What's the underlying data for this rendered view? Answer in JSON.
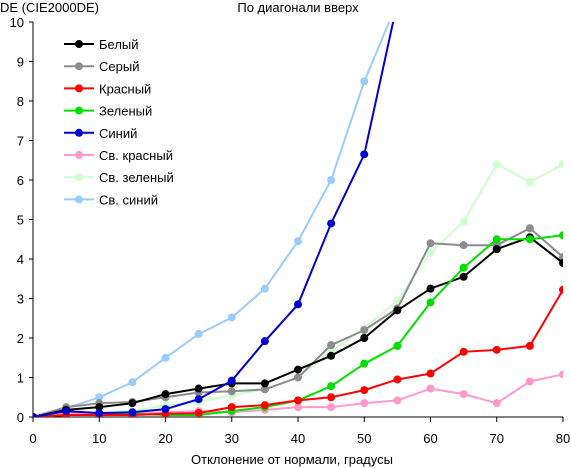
{
  "chart_data": {
    "type": "line",
    "title": "По диагонали вверх",
    "ylabel": "DE (CIE2000DE)",
    "xlabel": "Отклонение от нормали, градусы",
    "xlim": [
      0,
      80
    ],
    "ylim": [
      0,
      10
    ],
    "xticks": [
      0,
      10,
      20,
      30,
      40,
      50,
      60,
      70,
      80
    ],
    "yticks": [
      0,
      1,
      2,
      3,
      4,
      5,
      6,
      7,
      8,
      9,
      10
    ],
    "grid": false,
    "legend_position": "top-left",
    "x": [
      0,
      5,
      10,
      15,
      20,
      25,
      30,
      35,
      40,
      45,
      50,
      55,
      60,
      65,
      70,
      75,
      80
    ],
    "series": [
      {
        "name": "Белый",
        "color": "#000000",
        "values": [
          0,
          0.18,
          0.25,
          0.35,
          0.58,
          0.72,
          0.85,
          0.85,
          1.2,
          1.55,
          2.0,
          2.7,
          3.25,
          3.55,
          4.25,
          4.55,
          3.9
        ]
      },
      {
        "name": "Серый",
        "color": "#8c8c8c",
        "values": [
          0,
          0.25,
          0.35,
          0.38,
          0.5,
          0.62,
          0.65,
          0.7,
          1.0,
          1.82,
          2.2,
          2.75,
          4.4,
          4.35,
          4.35,
          4.78,
          4.05
        ]
      },
      {
        "name": "Красный",
        "color": "#ff0000",
        "values": [
          0,
          0.05,
          0.05,
          0.05,
          0.08,
          0.1,
          0.25,
          0.3,
          0.42,
          0.5,
          0.68,
          0.95,
          1.1,
          1.65,
          1.7,
          1.8,
          3.22
        ]
      },
      {
        "name": "Зеленый",
        "color": "#00e000",
        "values": [
          0,
          0.05,
          0.05,
          0.08,
          0.05,
          0.05,
          0.15,
          0.25,
          0.42,
          0.78,
          1.35,
          1.8,
          2.9,
          3.78,
          4.5,
          4.5,
          4.6
        ]
      },
      {
        "name": "Синий",
        "color": "#0000d0",
        "values": [
          0,
          0.15,
          0.1,
          0.12,
          0.2,
          0.45,
          0.92,
          1.92,
          2.85,
          4.9,
          6.65,
          10.5,
          null,
          null,
          null,
          null,
          null
        ]
      },
      {
        "name": "Св. красный",
        "color": "#ff99cc",
        "values": [
          0,
          0.12,
          0.05,
          0.1,
          0.12,
          0.15,
          0.12,
          0.18,
          0.25,
          0.25,
          0.35,
          0.42,
          0.72,
          0.58,
          0.35,
          0.9,
          1.08
        ]
      },
      {
        "name": "Св. зеленый",
        "color": "#ccffcc",
        "values": [
          0,
          0.1,
          0.12,
          0.15,
          0.3,
          0.38,
          0.55,
          0.7,
          1.0,
          1.65,
          2.25,
          2.95,
          4.15,
          4.95,
          6.4,
          5.95,
          6.4
        ]
      },
      {
        "name": "Св. синий",
        "color": "#99ccff",
        "values": [
          0,
          0.22,
          0.5,
          0.88,
          1.5,
          2.1,
          2.52,
          3.25,
          4.45,
          6.0,
          8.5,
          10.5,
          null,
          null,
          null,
          null,
          null
        ]
      }
    ]
  }
}
